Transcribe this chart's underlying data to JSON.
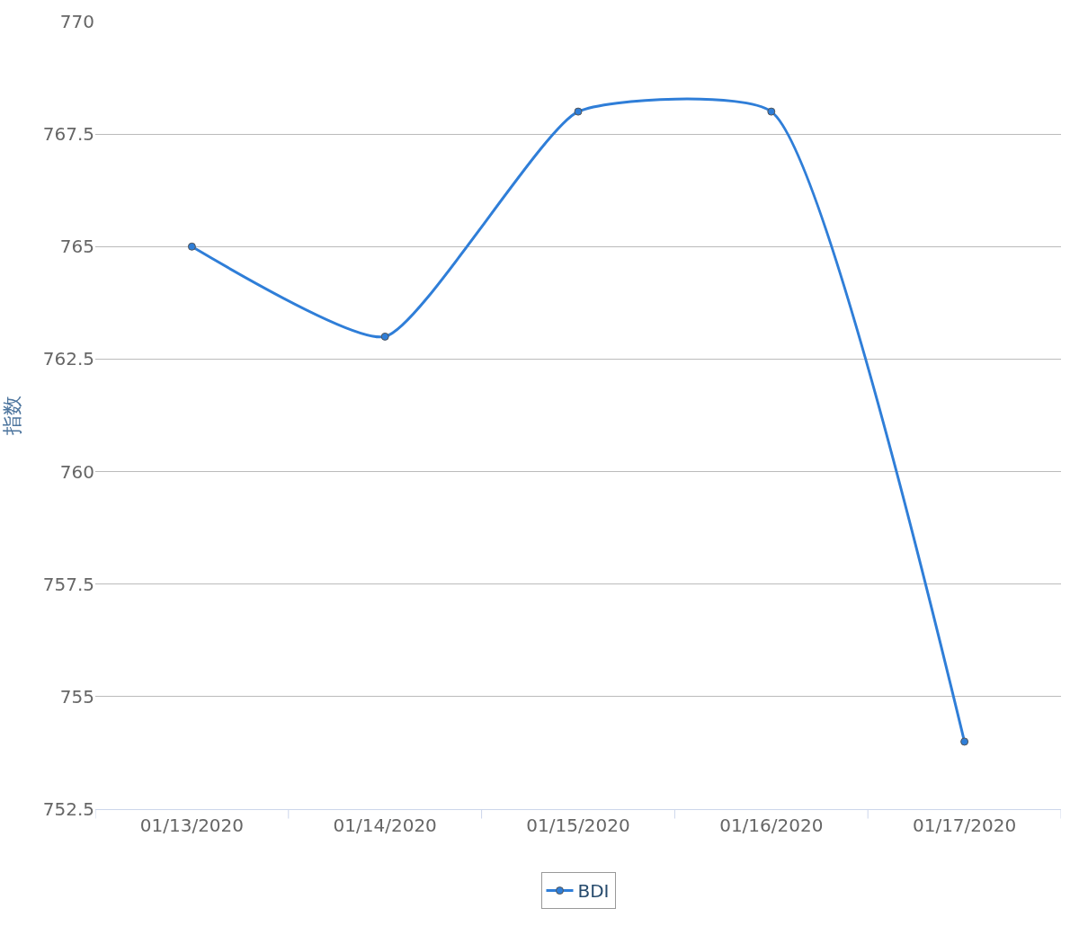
{
  "chart_data": {
    "type": "line",
    "ylabel": "指数",
    "categories": [
      "01/13/2020",
      "01/14/2020",
      "01/15/2020",
      "01/16/2020",
      "01/17/2020"
    ],
    "series": [
      {
        "name": "BDI",
        "color": "#2f7ed8",
        "values": [
          765,
          763,
          768,
          768,
          754
        ]
      }
    ],
    "ylim": [
      752.5,
      770
    ],
    "yticks": [
      752.5,
      755,
      757.5,
      760,
      762.5,
      765,
      767.5,
      770
    ],
    "grid": "y",
    "legend": "bottom",
    "marker": "circle",
    "line_style": "solid"
  }
}
